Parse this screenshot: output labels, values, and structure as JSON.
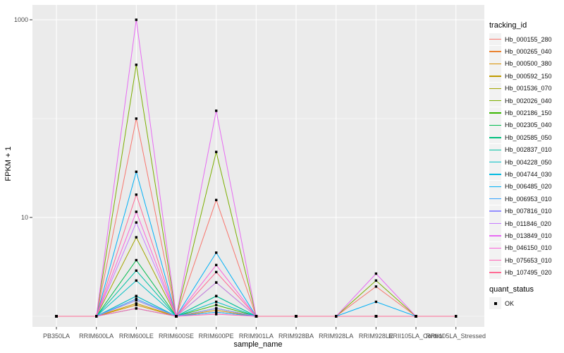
{
  "chart_data": {
    "type": "line",
    "title": "",
    "xlabel": "sample_name",
    "ylabel": "FPKM + 1",
    "y_scale": "log10",
    "y_tick_labels": [
      "1000",
      "10"
    ],
    "y_tick_values": [
      1000,
      10
    ],
    "y_minor_values": [
      100,
      1
    ],
    "ylim": [
      0.8,
      1400
    ],
    "grid": true,
    "legend_position": "right",
    "legend_title": "tracking_id",
    "panel_bg": "#EBEBEB",
    "grid_color": "#FFFFFF",
    "axis_text_color": "#4D4D4D",
    "point_color": "#000000",
    "categories": [
      "PB350LA",
      "RRIM600LA",
      "RRIM600LE",
      "RRIM600SE",
      "RRIM600PE",
      "RRIM901LA",
      "RRIM928BA",
      "RRIM928LA",
      "RRIM928LE",
      "RRII105LA_Control",
      "RRII105LA_Stressed"
    ],
    "series": [
      {
        "name": "Hb_000155_280",
        "color": "#F8766D",
        "values": [
          1,
          1,
          100,
          1,
          15,
          1,
          1,
          1,
          2.0,
          1,
          1
        ]
      },
      {
        "name": "Hb_000265_040",
        "color": "#EA8331",
        "values": [
          1,
          1,
          1.45,
          1,
          1.2,
          1,
          1,
          1,
          1,
          1,
          1
        ]
      },
      {
        "name": "Hb_000500_380",
        "color": "#D89000",
        "values": [
          1,
          1,
          1.3,
          1,
          1.15,
          1,
          1,
          1,
          1,
          1,
          1
        ]
      },
      {
        "name": "Hb_000592_150",
        "color": "#C09B00",
        "values": [
          1,
          1,
          1.35,
          1,
          1.2,
          1,
          1,
          1,
          1,
          1,
          1
        ]
      },
      {
        "name": "Hb_001536_070",
        "color": "#A3A500",
        "values": [
          1,
          1,
          6.3,
          1,
          2.2,
          1,
          1,
          1,
          1,
          1,
          1
        ]
      },
      {
        "name": "Hb_002026_040",
        "color": "#7CAE00",
        "values": [
          1,
          1,
          350,
          1,
          46,
          1,
          1,
          1,
          2.3,
          1,
          1
        ]
      },
      {
        "name": "Hb_002186_150",
        "color": "#39B600",
        "values": [
          1,
          1,
          1.6,
          1,
          1.3,
          1,
          1,
          1,
          1,
          1,
          1
        ]
      },
      {
        "name": "Hb_002305_040",
        "color": "#00BB4E",
        "values": [
          1,
          1,
          3.7,
          1,
          1.6,
          1,
          1,
          1,
          1,
          1,
          1
        ]
      },
      {
        "name": "Hb_002585_050",
        "color": "#00BF7D",
        "values": [
          1,
          1,
          1.2,
          1,
          1.1,
          1,
          1,
          1,
          1,
          1,
          1
        ]
      },
      {
        "name": "Hb_002837_010",
        "color": "#00C1A3",
        "values": [
          1,
          1,
          2.9,
          1,
          1.6,
          1,
          1,
          1,
          1,
          1,
          1
        ]
      },
      {
        "name": "Hb_004228_050",
        "color": "#00BFC4",
        "values": [
          1,
          1,
          2.3,
          1,
          1.4,
          1,
          1,
          1,
          1,
          1,
          1
        ]
      },
      {
        "name": "Hb_004744_030",
        "color": "#00BAE0",
        "values": [
          1,
          1,
          1.6,
          1,
          1.2,
          1,
          1,
          1,
          1,
          1,
          1
        ]
      },
      {
        "name": "Hb_006485_020",
        "color": "#00B0F6",
        "values": [
          1,
          1,
          29,
          1,
          4.4,
          1,
          1,
          1,
          1.4,
          1,
          1
        ]
      },
      {
        "name": "Hb_006953_010",
        "color": "#35A2FF",
        "values": [
          1,
          1,
          1.5,
          1,
          1.1,
          1,
          1,
          1,
          1,
          1,
          1
        ]
      },
      {
        "name": "Hb_007816_010",
        "color": "#9590FF",
        "values": [
          1,
          1,
          1.45,
          1,
          1.2,
          1,
          1,
          1,
          1,
          1,
          1
        ]
      },
      {
        "name": "Hb_011846_020",
        "color": "#C77CFF",
        "values": [
          1,
          1,
          8.9,
          1,
          2.2,
          1,
          1,
          1,
          1,
          1,
          1
        ]
      },
      {
        "name": "Hb_013849_010",
        "color": "#E76BF3",
        "values": [
          1,
          1,
          1000,
          1,
          120,
          1,
          1,
          1,
          2.7,
          1,
          1
        ]
      },
      {
        "name": "Hb_046150_010",
        "color": "#FA62DB",
        "values": [
          1,
          1,
          11.4,
          1,
          3.3,
          1,
          1,
          1,
          1,
          1,
          1
        ]
      },
      {
        "name": "Hb_075653_010",
        "color": "#FF63B6",
        "values": [
          1,
          1,
          1.2,
          1,
          1.05,
          1,
          1,
          1,
          1,
          1,
          1
        ]
      },
      {
        "name": "Hb_107495_020",
        "color": "#FF6B94",
        "values": [
          1,
          1,
          17,
          1,
          2.8,
          1,
          1,
          1,
          1,
          1,
          1
        ]
      }
    ],
    "quant_legend": {
      "title": "quant_status",
      "items": [
        {
          "label": "OK",
          "shape": "square",
          "color": "#000000"
        }
      ]
    }
  }
}
